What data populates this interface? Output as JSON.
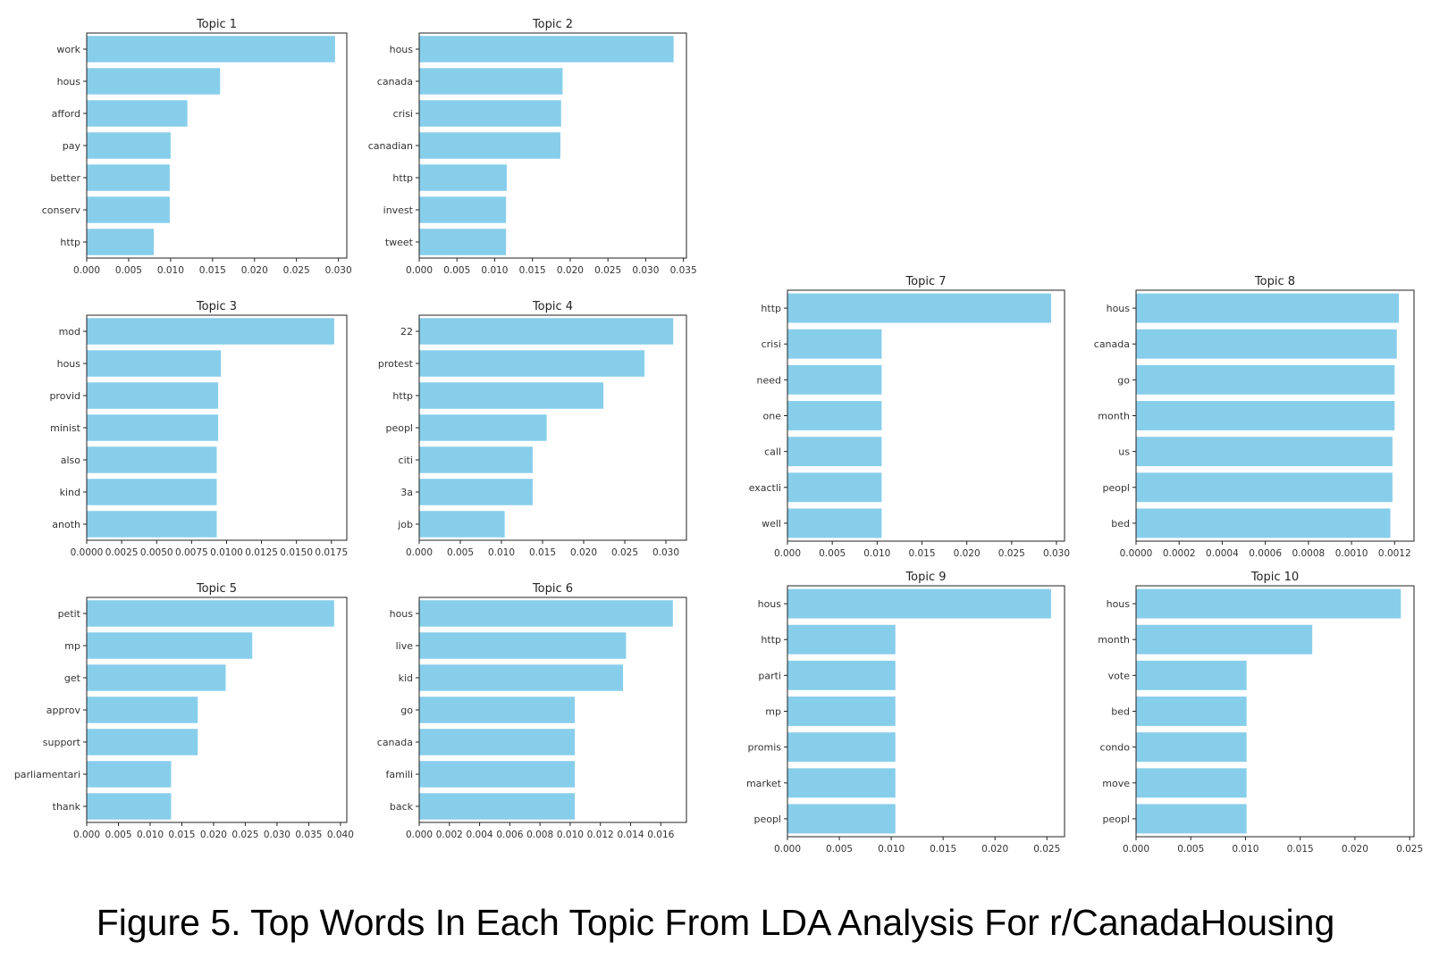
{
  "caption": "Figure 5. Top Words In Each Topic From LDA Analysis For r/CanadaHousing",
  "colors": {
    "bar": "#87ceeb",
    "axis": "#222222",
    "text": "#333333"
  },
  "chart_data": [
    {
      "type": "bar",
      "orientation": "horizontal",
      "title": "Topic 1",
      "categories": [
        "work",
        "hous",
        "afford",
        "pay",
        "better",
        "conserv",
        "http"
      ],
      "values": [
        0.0296,
        0.0159,
        0.012,
        0.01,
        0.0099,
        0.0099,
        0.008
      ],
      "xlim": [
        0,
        0.031
      ],
      "xticks": [
        "0.000",
        "0.005",
        "0.010",
        "0.015",
        "0.020",
        "0.025",
        "0.030"
      ]
    },
    {
      "type": "bar",
      "orientation": "horizontal",
      "title": "Topic 2",
      "categories": [
        "hous",
        "canada",
        "crisi",
        "canadian",
        "http",
        "invest",
        "tweet"
      ],
      "values": [
        0.0337,
        0.019,
        0.0188,
        0.0187,
        0.0116,
        0.0115,
        0.0115
      ],
      "xlim": [
        0,
        0.0354
      ],
      "xticks": [
        "0.000",
        "0.005",
        "0.010",
        "0.015",
        "0.020",
        "0.025",
        "0.030",
        "0.035"
      ]
    },
    {
      "type": "bar",
      "orientation": "horizontal",
      "title": "Topic 3",
      "categories": [
        "mod",
        "hous",
        "provid",
        "minist",
        "also",
        "kind",
        "anoth"
      ],
      "values": [
        0.0177,
        0.0096,
        0.0094,
        0.0094,
        0.0093,
        0.0093,
        0.0093
      ],
      "xlim": [
        0,
        0.0186
      ],
      "xticks": [
        "0.0000",
        "0.0025",
        "0.0050",
        "0.0075",
        "0.0100",
        "0.0125",
        "0.0150",
        "0.0175"
      ]
    },
    {
      "type": "bar",
      "orientation": "horizontal",
      "title": "Topic 4",
      "categories": [
        "22",
        "protest",
        "http",
        "peopl",
        "citi",
        "3a",
        "job"
      ],
      "values": [
        0.0309,
        0.0274,
        0.0224,
        0.0155,
        0.0138,
        0.0138,
        0.0104
      ],
      "xlim": [
        0,
        0.0325
      ],
      "xticks": [
        "0.000",
        "0.005",
        "0.010",
        "0.015",
        "0.020",
        "0.025",
        "0.030"
      ]
    },
    {
      "type": "bar",
      "orientation": "horizontal",
      "title": "Topic 5",
      "categories": [
        "petit",
        "mp",
        "get",
        "approv",
        "support",
        "parliamentari",
        "thank"
      ],
      "values": [
        0.039,
        0.0261,
        0.0219,
        0.0175,
        0.0175,
        0.0133,
        0.0133
      ],
      "xlim": [
        0,
        0.041
      ],
      "xticks": [
        "0.000",
        "0.005",
        "0.010",
        "0.015",
        "0.020",
        "0.025",
        "0.030",
        "0.035",
        "0.040"
      ]
    },
    {
      "type": "bar",
      "orientation": "horizontal",
      "title": "Topic 6",
      "categories": [
        "hous",
        "live",
        "kid",
        "go",
        "canada",
        "famili",
        "back"
      ],
      "values": [
        0.0168,
        0.0137,
        0.0135,
        0.0103,
        0.0103,
        0.0103,
        0.0103
      ],
      "xlim": [
        0,
        0.0177
      ],
      "xticks": [
        "0.000",
        "0.002",
        "0.004",
        "0.006",
        "0.008",
        "0.010",
        "0.012",
        "0.014",
        "0.016"
      ]
    },
    {
      "type": "bar",
      "orientation": "horizontal",
      "title": "Topic 7",
      "categories": [
        "http",
        "crisi",
        "need",
        "one",
        "call",
        "exactli",
        "well"
      ],
      "values": [
        0.0294,
        0.0105,
        0.0105,
        0.0105,
        0.0105,
        0.0105,
        0.0105
      ],
      "xlim": [
        0,
        0.0309
      ],
      "xticks": [
        "0.000",
        "0.005",
        "0.010",
        "0.015",
        "0.020",
        "0.025",
        "0.030"
      ]
    },
    {
      "type": "bar",
      "orientation": "horizontal",
      "title": "Topic 8",
      "categories": [
        "hous",
        "canada",
        "go",
        "month",
        "us",
        "peopl",
        "bed"
      ],
      "values": [
        0.00122,
        0.00121,
        0.0012,
        0.0012,
        0.00119,
        0.00119,
        0.00118
      ],
      "xlim": [
        0,
        0.00129
      ],
      "xticks": [
        "0.0000",
        "0.0002",
        "0.0004",
        "0.0006",
        "0.0008",
        "0.0010",
        "0.0012"
      ]
    },
    {
      "type": "bar",
      "orientation": "horizontal",
      "title": "Topic 9",
      "categories": [
        "hous",
        "http",
        "parti",
        "mp",
        "promis",
        "market",
        "peopl"
      ],
      "values": [
        0.0254,
        0.0104,
        0.0104,
        0.0104,
        0.0104,
        0.0104,
        0.0104
      ],
      "xlim": [
        0,
        0.0267
      ],
      "xticks": [
        "0.000",
        "0.005",
        "0.010",
        "0.015",
        "0.020",
        "0.025"
      ]
    },
    {
      "type": "bar",
      "orientation": "horizontal",
      "title": "Topic 10",
      "categories": [
        "hous",
        "month",
        "vote",
        "bed",
        "condo",
        "move",
        "peopl"
      ],
      "values": [
        0.0242,
        0.0161,
        0.0101,
        0.0101,
        0.0101,
        0.0101,
        0.0101
      ],
      "xlim": [
        0,
        0.0254
      ],
      "xticks": [
        "0.000",
        "0.005",
        "0.010",
        "0.015",
        "0.020",
        "0.025"
      ]
    }
  ]
}
